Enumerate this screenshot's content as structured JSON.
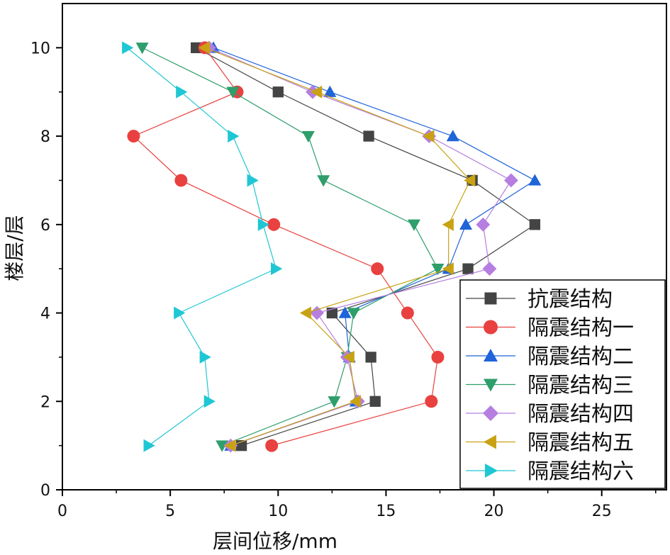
{
  "chart_data": {
    "type": "line",
    "title": "",
    "xlabel": "层间位移/mm",
    "ylabel": "楼层/层",
    "xlim": [
      0,
      28
    ],
    "ylim": [
      0,
      11
    ],
    "xticks": [
      0,
      5,
      10,
      15,
      20,
      25
    ],
    "yticks": [
      0,
      2,
      4,
      6,
      8,
      10
    ],
    "grid": false,
    "legend_position": "bottom-right",
    "y": [
      1,
      2,
      3,
      4,
      5,
      6,
      7,
      8,
      9,
      10
    ],
    "series": [
      {
        "name": "抗震结构",
        "color": "#444444",
        "marker": "square",
        "x": [
          8.3,
          14.5,
          14.3,
          12.5,
          18.8,
          21.9,
          19.0,
          14.2,
          10.0,
          6.2
        ]
      },
      {
        "name": "隔震结构一",
        "color": "#e8413f",
        "marker": "circle",
        "x": [
          9.7,
          17.1,
          17.4,
          16.0,
          14.6,
          9.8,
          5.5,
          3.3,
          8.1,
          6.6
        ]
      },
      {
        "name": "隔震结构二",
        "color": "#1f64d8",
        "marker": "triangle-up",
        "x": [
          7.8,
          13.6,
          13.3,
          13.1,
          17.9,
          18.7,
          21.9,
          18.1,
          12.4,
          7.0
        ]
      },
      {
        "name": "隔震结构三",
        "color": "#2e9e6b",
        "marker": "triangle-down",
        "x": [
          7.4,
          12.6,
          13.2,
          13.5,
          17.4,
          16.3,
          12.1,
          11.4,
          7.9,
          3.7
        ]
      },
      {
        "name": "隔震结构四",
        "color": "#b57ee0",
        "marker": "diamond",
        "x": [
          7.8,
          13.7,
          13.2,
          11.8,
          19.8,
          19.5,
          20.8,
          17.0,
          11.6,
          6.8
        ]
      },
      {
        "name": "隔震结构五",
        "color": "#c9a214",
        "marker": "triangle-left",
        "x": [
          7.8,
          13.6,
          13.3,
          11.3,
          17.9,
          17.9,
          18.9,
          17.0,
          11.8,
          6.6
        ]
      },
      {
        "name": "隔震结构六",
        "color": "#1fc7d4",
        "marker": "triangle-right",
        "x": [
          4.0,
          6.8,
          6.6,
          5.4,
          9.9,
          9.3,
          8.8,
          7.9,
          5.5,
          3.0
        ]
      }
    ]
  }
}
